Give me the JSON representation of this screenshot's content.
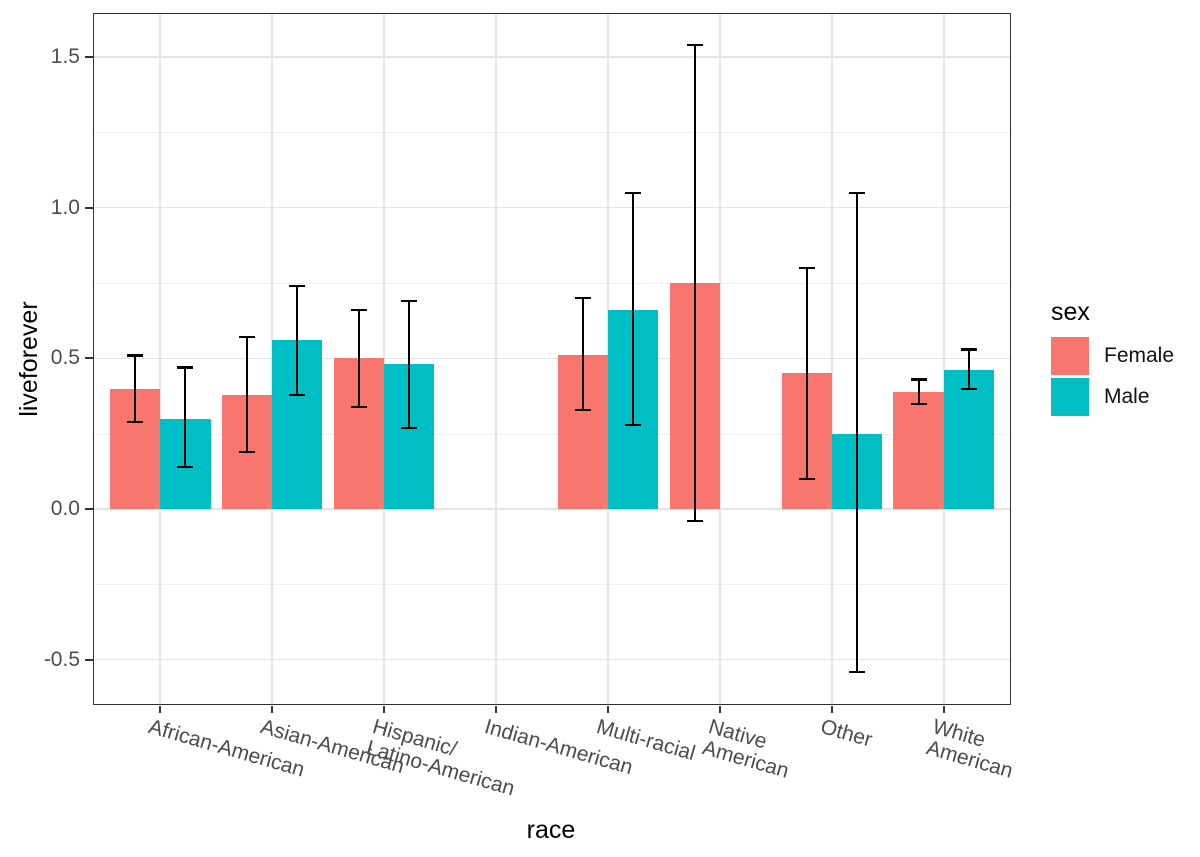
{
  "figure": {
    "background": "#FFFFFF"
  },
  "chart_data": {
    "type": "bar",
    "title": "",
    "xlabel": "race",
    "ylabel": "liveforever",
    "legend_title": "sex",
    "legend_position": "right",
    "grid": true,
    "bar_group_width_fraction": 0.9,
    "categories": [
      "African-American",
      "Asian-American",
      "Hispanic/\nLatino-American",
      "Indian-American",
      "Multi-racial",
      "Native\nAmerican",
      "Other",
      "White\nAmerican"
    ],
    "series": [
      {
        "name": "Female",
        "color": "#F8766D",
        "values": [
          0.4,
          0.38,
          0.5,
          null,
          0.51,
          0.75,
          0.45,
          0.39
        ],
        "error_low": [
          0.29,
          0.19,
          0.34,
          null,
          0.33,
          -0.04,
          0.1,
          0.35
        ],
        "error_high": [
          0.51,
          0.57,
          0.66,
          null,
          0.7,
          1.54,
          0.8,
          0.43
        ]
      },
      {
        "name": "Male",
        "color": "#00BFC4",
        "values": [
          0.3,
          0.56,
          0.48,
          null,
          0.66,
          null,
          0.25,
          0.46
        ],
        "error_low": [
          0.14,
          0.38,
          0.27,
          null,
          0.28,
          null,
          -0.54,
          0.4
        ],
        "error_high": [
          0.47,
          0.74,
          0.69,
          null,
          1.05,
          null,
          1.05,
          0.53
        ]
      }
    ],
    "y_tick_values": [
      -0.5,
      0.0,
      0.5,
      1.0,
      1.5
    ],
    "y_tick_labels": [
      "-0.5",
      "0.0",
      "0.5",
      "1.0",
      "1.5"
    ],
    "y_minor_grid_values": [
      -0.25,
      0.25,
      0.75,
      1.25
    ],
    "ylim": [
      -0.65,
      1.646
    ],
    "colors": {
      "error_bar": "#000000",
      "panel_border": "#333333",
      "grid_major": "#E4E4E4",
      "grid_minor": "#EFEFEF",
      "axis_text": "#4D4D4D",
      "axis_title": "#000000"
    }
  }
}
